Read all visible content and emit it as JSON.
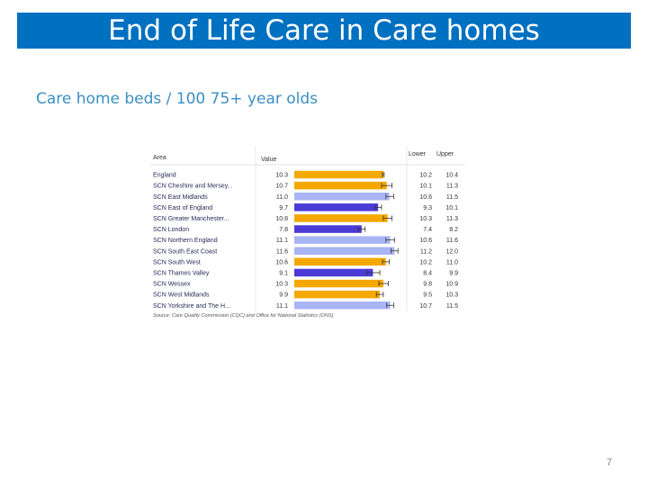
{
  "slide": {
    "title": "End of Life Care in Care homes",
    "subtitle": "Care home beds / 100 75+ year olds",
    "page_number": "7"
  },
  "chart_data": {
    "type": "bar",
    "orientation": "horizontal",
    "title": "",
    "headers": {
      "area": "Area",
      "value": "Value",
      "lower": "Lower",
      "upper": "Upper"
    },
    "source": "Source: Care Quality Commission (CQC) and Office for National Statistics (ONS)",
    "categories": [
      "England",
      "SCN Cheshire and Mersey...",
      "SCN East Midlands",
      "SCN East of England",
      "SCN Greater Manchester...",
      "SCN London",
      "SCN Northern England",
      "SCN South East Coast",
      "SCN South West",
      "SCN Thames Valley",
      "SCN Wessex",
      "SCN West Midlands",
      "SCN Yorkshire and The H..."
    ],
    "values": [
      10.3,
      10.7,
      11.0,
      9.7,
      10.8,
      7.8,
      11.1,
      11.6,
      10.6,
      9.1,
      10.3,
      9.9,
      11.1
    ],
    "lower": [
      10.2,
      10.1,
      10.6,
      9.3,
      10.3,
      7.4,
      10.6,
      11.2,
      10.2,
      8.4,
      9.8,
      9.5,
      10.7
    ],
    "upper": [
      10.4,
      11.3,
      11.5,
      10.1,
      11.3,
      8.2,
      11.6,
      12.0,
      11.0,
      9.9,
      10.9,
      10.3,
      11.5
    ],
    "value_labels": [
      "10.3",
      "10.7",
      "11.0",
      "9.7",
      "10.8",
      "7.8",
      "11.1",
      "11.6",
      "10.6",
      "9.1",
      "10.3",
      "9.9",
      "11.1"
    ],
    "lower_labels": [
      "10.2",
      "10.1",
      "10.6",
      "9.3",
      "10.3",
      "7.4",
      "10.6",
      "11.2",
      "10.2",
      "8.4",
      "9.8",
      "9.5",
      "10.7"
    ],
    "upper_labels": [
      "10.4",
      "11.3",
      "11.5",
      "10.1",
      "11.3",
      "8.2",
      "11.6",
      "12.0",
      "11.0",
      "9.9",
      "10.9",
      "10.3",
      "11.5"
    ],
    "bar_colors": [
      "#f5a800",
      "#f5a800",
      "#a9b4f5",
      "#4a3ad6",
      "#f5a800",
      "#4a3ad6",
      "#a9b4f5",
      "#a9b4f5",
      "#f5a800",
      "#4a3ad6",
      "#f5a800",
      "#f5a800",
      "#a9b4f5"
    ],
    "xlim": [
      0,
      12.5
    ],
    "grid": false,
    "legend": "none"
  }
}
